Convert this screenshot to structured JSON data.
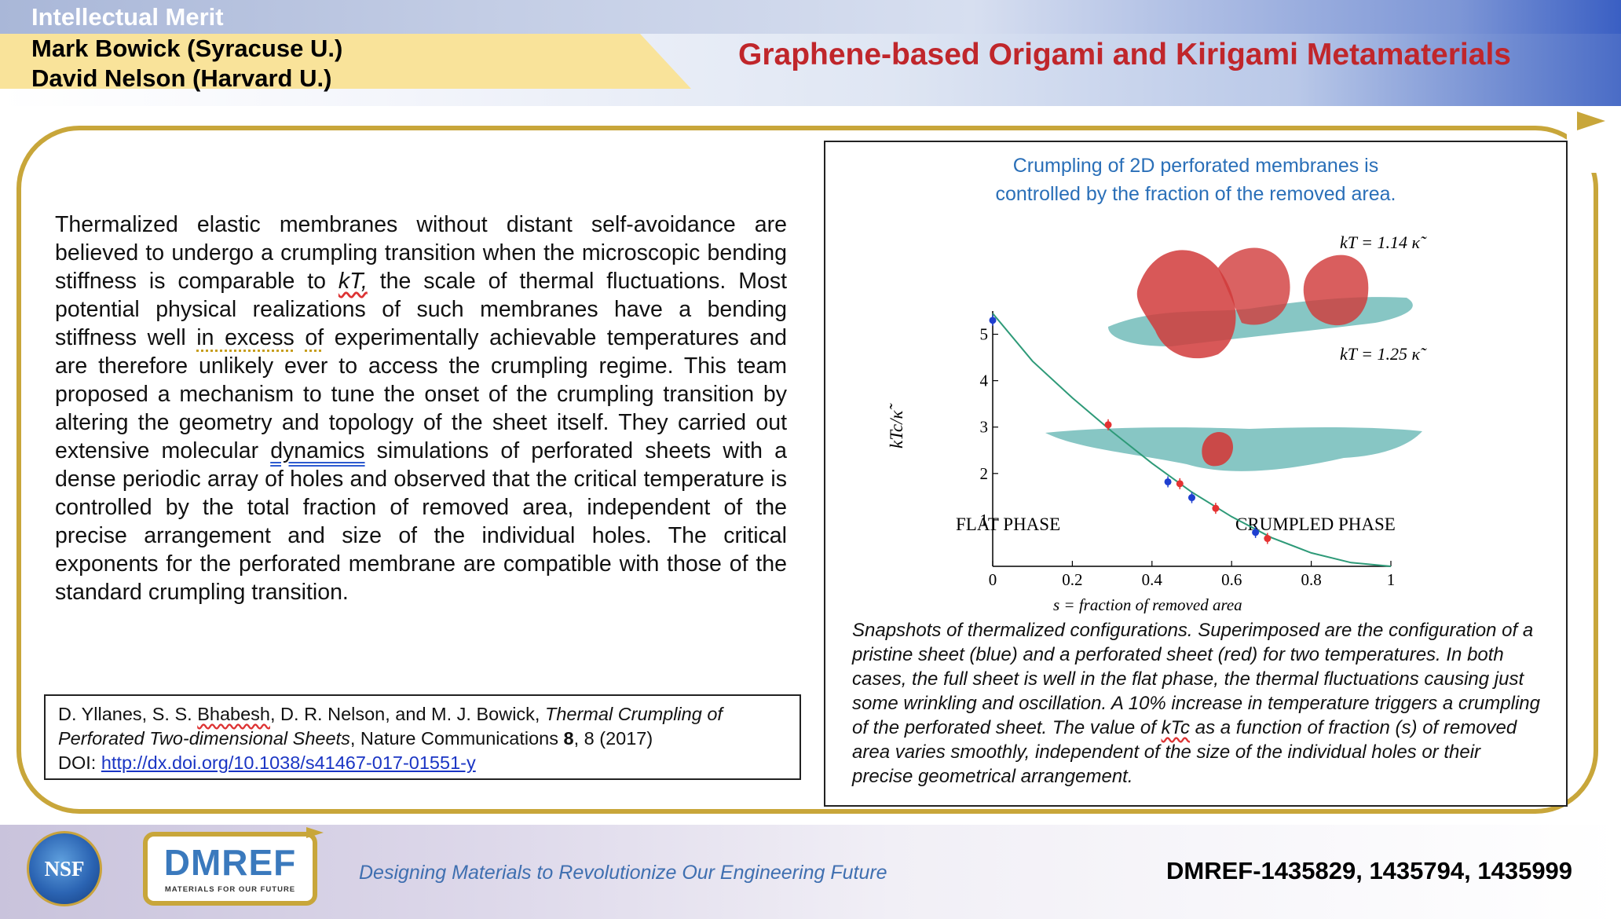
{
  "header": {
    "category": "Intellectual Merit",
    "pi_1": "Mark Bowick (Syracuse U.)",
    "pi_2": "David Nelson (Harvard U.)",
    "title": "Graphene-based Origami and Kirigami Metamaterials"
  },
  "body": {
    "p1": "Thermalized elastic membranes without distant self-avoidance are believed to undergo a crumpling transition when the microscopic bending stiffness is comparable to ",
    "kT": "kT,",
    "p2": " the scale of thermal fluctuations. Most potential physical realizations of such membranes have a bending stiffness well ",
    "in_excess": "in excess",
    "p3": " ",
    "of": "of",
    "p4": " experimentally achievable temperatures and are therefore unlikely ever to access the crumpling regime. This team proposed a mechanism to tune the onset of the crumpling transition by altering the geometry and topology of the sheet itself. They carried out extensive molecular ",
    "dynamics": "dynamics",
    "p5": " simulations of perforated sheets with a dense periodic array of holes and observed that the critical temperature is controlled by the total fraction of removed area, independent of the precise arrangement and size of the individual holes. The critical exponents for the perforated membrane are compatible with those of the standard crumpling transition."
  },
  "reference": {
    "authors_1": "D. Yllanes, S. S. ",
    "bhabesh": "Bhabesh",
    "authors_2": ", D. R. Nelson, and M. J. Bowick, ",
    "paper_title": "Thermal Crumpling of Perforated Two-dimensional Sheets",
    "journal": ", Nature Communications ",
    "volume": "8",
    "pages_year": ", 8 (2017)",
    "doi_label": "DOI: ",
    "doi_url": "http://dx.doi.org/10.1038/s41467-017-01551-y"
  },
  "figure": {
    "title_line1": "Crumpling of 2D perforated membranes is",
    "title_line2": "controlled by the fraction of the removed area.",
    "caption_1": "Snapshots of thermalized configurations. Superimposed are the configuration of a pristine sheet (blue) and a perforated sheet (red) for two temperatures. In both cases, the full sheet is well in the flat phase, the thermal fluctuations causing just some wrinkling and oscillation. A 10% increase in temperature triggers a crumpling of the perforated sheet. The value of ",
    "caption_kTc": "kTc",
    "caption_2": " as a function of fraction (s) of removed area varies smoothly, independent of the size of the individual holes or their precise geometrical arrangement."
  },
  "chart_data": {
    "type": "scatter",
    "xlabel": "s = fraction of removed area",
    "ylabel": "kTc/κ̃",
    "xlim": [
      0,
      1
    ],
    "ylim": [
      0,
      5.5
    ],
    "x_ticks": [
      "0",
      "0.2",
      "0.4",
      "0.6",
      "0.8",
      "1"
    ],
    "y_ticks": [
      "1",
      "2",
      "3",
      "4",
      "5"
    ],
    "region_labels": [
      "FLAT PHASE",
      "CRUMPLED PHASE"
    ],
    "inset_labels": [
      "kT = 1.14 κ̃",
      "kT = 1.25 κ̃"
    ],
    "fit_curve": {
      "x": [
        0,
        0.1,
        0.2,
        0.3,
        0.4,
        0.5,
        0.6,
        0.7,
        0.8,
        0.9,
        1.0
      ],
      "y": [
        5.45,
        4.42,
        3.63,
        2.9,
        2.22,
        1.6,
        1.07,
        0.62,
        0.29,
        0.08,
        0
      ]
    },
    "series": [
      {
        "color": "#1f3fd0",
        "x": [
          0,
          0.44,
          0.5,
          0.66
        ],
        "y": [
          5.3,
          1.82,
          1.48,
          0.73
        ]
      },
      {
        "color": "#e53232",
        "x": [
          0.29,
          0.47,
          0.56,
          0.69
        ],
        "y": [
          3.05,
          1.78,
          1.25,
          0.6
        ]
      }
    ],
    "grid": false
  },
  "footer": {
    "nsf": "NSF",
    "dmref": "DMREF",
    "dmref_sub": "MATERIALS FOR OUR FUTURE",
    "tagline": "Designing Materials to Revolutionize Our Engineering Future",
    "award": "DMREF-1435829, 1435794, 1435999"
  },
  "colors": {
    "title_red": "#c0262b",
    "frame_gold": "#c8a63a",
    "name_band": "#f9e39a",
    "figure_title_blue": "#2a6fb8",
    "fit_line_green": "#2e9a78",
    "pristine_blue": "#1f3fd0",
    "perforated_red": "#e53232",
    "sheet_teal": "#5fb3b0"
  }
}
